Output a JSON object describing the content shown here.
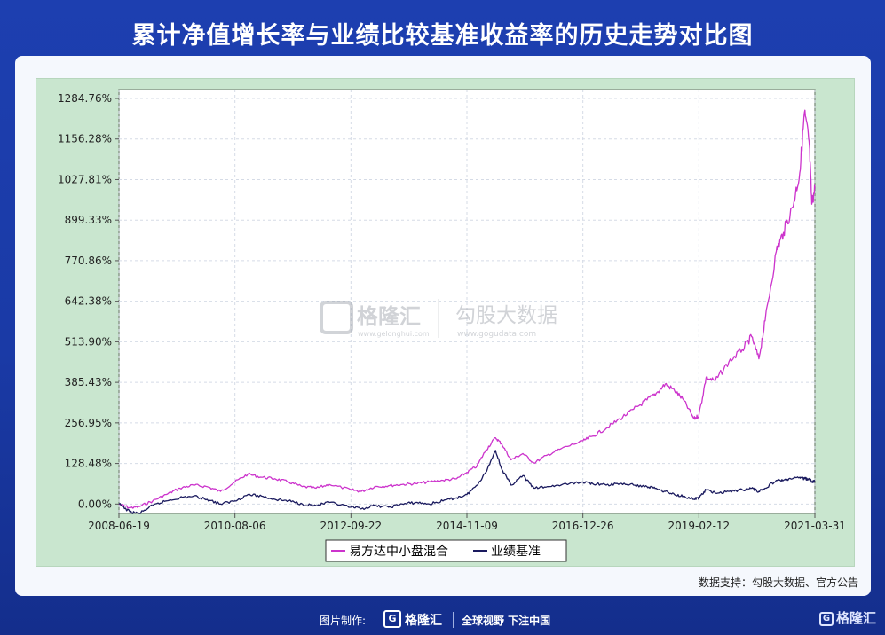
{
  "title": "累计净值增长率与业绩比较基准收益率的历史走势对比图",
  "source_note": "数据支持：勾股大数据、官方公告",
  "footer": {
    "made_by": "图片制作:",
    "brand": "格隆汇",
    "slogan": "全球视野 下注中国",
    "corner_brand": "格隆汇"
  },
  "watermark": {
    "left_name": "格隆汇",
    "left_url": "www.gelonghui.com",
    "right_name": "勾股大数据",
    "right_url": "www.gogudata.com"
  },
  "colors": {
    "fund": "#cc33cc",
    "benchmark": "#1a1a5e",
    "plot_bg": "#ffffff",
    "frame_bg": "#c9e6cf"
  },
  "chart_data": {
    "type": "line",
    "title": "",
    "xlabel": "",
    "ylabel": "",
    "x_tick_labels": [
      "2008-06-19",
      "2010-08-06",
      "2012-09-22",
      "2014-11-09",
      "2016-12-26",
      "2019-02-12",
      "2021-03-31"
    ],
    "y_tick_labels": [
      "0.00%",
      "128.48%",
      "256.95%",
      "385.43%",
      "513.90%",
      "642.38%",
      "770.86%",
      "899.33%",
      "1027.81%",
      "1156.28%",
      "1284.76%"
    ],
    "y_ticks": [
      0,
      128.48,
      256.95,
      385.43,
      513.9,
      642.38,
      770.86,
      899.33,
      1027.81,
      1156.28,
      1284.76
    ],
    "ylim": [
      -30,
      1284.76
    ],
    "xlim": [
      "2008-06-19",
      "2021-03-31"
    ],
    "grid": true,
    "legend_position": "bottom",
    "series": [
      {
        "name": "易方达中小盘混合",
        "points": [
          [
            "2008-06-19",
            0
          ],
          [
            "2008-09-01",
            -12
          ],
          [
            "2008-11-01",
            -8
          ],
          [
            "2009-02-01",
            10
          ],
          [
            "2009-05-01",
            30
          ],
          [
            "2009-08-01",
            50
          ],
          [
            "2009-11-01",
            60
          ],
          [
            "2010-02-01",
            55
          ],
          [
            "2010-05-01",
            40
          ],
          [
            "2010-08-06",
            70
          ],
          [
            "2010-11-01",
            95
          ],
          [
            "2011-02-01",
            85
          ],
          [
            "2011-05-01",
            80
          ],
          [
            "2011-08-01",
            70
          ],
          [
            "2011-11-01",
            55
          ],
          [
            "2012-02-01",
            50
          ],
          [
            "2012-05-01",
            62
          ],
          [
            "2012-09-22",
            45
          ],
          [
            "2012-12-01",
            40
          ],
          [
            "2013-03-01",
            55
          ],
          [
            "2013-06-01",
            58
          ],
          [
            "2013-09-01",
            62
          ],
          [
            "2013-12-01",
            65
          ],
          [
            "2014-03-01",
            70
          ],
          [
            "2014-06-01",
            75
          ],
          [
            "2014-09-01",
            80
          ],
          [
            "2014-11-09",
            100
          ],
          [
            "2015-01-15",
            120
          ],
          [
            "2015-03-15",
            170
          ],
          [
            "2015-05-20",
            210
          ],
          [
            "2015-07-01",
            190
          ],
          [
            "2015-09-01",
            140
          ],
          [
            "2015-11-20",
            160
          ],
          [
            "2016-02-01",
            130
          ],
          [
            "2016-05-01",
            155
          ],
          [
            "2016-08-01",
            175
          ],
          [
            "2016-12-26",
            200
          ],
          [
            "2017-03-01",
            215
          ],
          [
            "2017-06-01",
            240
          ],
          [
            "2017-09-01",
            270
          ],
          [
            "2017-12-01",
            300
          ],
          [
            "2018-03-01",
            330
          ],
          [
            "2018-05-01",
            350
          ],
          [
            "2018-07-01",
            380
          ],
          [
            "2018-09-01",
            360
          ],
          [
            "2018-11-01",
            330
          ],
          [
            "2019-01-10",
            270
          ],
          [
            "2019-02-12",
            280
          ],
          [
            "2019-04-01",
            400
          ],
          [
            "2019-06-01",
            390
          ],
          [
            "2019-09-01",
            450
          ],
          [
            "2019-12-01",
            490
          ],
          [
            "2020-02-01",
            530
          ],
          [
            "2020-03-20",
            460
          ],
          [
            "2020-05-01",
            580
          ],
          [
            "2020-07-15",
            800
          ],
          [
            "2020-09-01",
            860
          ],
          [
            "2020-11-01",
            940
          ],
          [
            "2020-12-20",
            1050
          ],
          [
            "2021-01-20",
            1240
          ],
          [
            "2021-02-20",
            1150
          ],
          [
            "2021-03-10",
            950
          ],
          [
            "2021-03-31",
            1000
          ]
        ]
      },
      {
        "name": "业绩基准",
        "points": [
          [
            "2008-06-19",
            0
          ],
          [
            "2008-09-01",
            -25
          ],
          [
            "2008-11-01",
            -30
          ],
          [
            "2009-02-01",
            -5
          ],
          [
            "2009-05-01",
            10
          ],
          [
            "2009-08-01",
            20
          ],
          [
            "2009-11-01",
            25
          ],
          [
            "2010-02-01",
            15
          ],
          [
            "2010-05-01",
            0
          ],
          [
            "2010-08-06",
            10
          ],
          [
            "2010-11-01",
            30
          ],
          [
            "2011-02-01",
            25
          ],
          [
            "2011-05-01",
            15
          ],
          [
            "2011-08-01",
            10
          ],
          [
            "2011-11-01",
            0
          ],
          [
            "2012-02-01",
            -5
          ],
          [
            "2012-05-01",
            5
          ],
          [
            "2012-09-22",
            -10
          ],
          [
            "2012-12-01",
            -15
          ],
          [
            "2013-03-01",
            -5
          ],
          [
            "2013-06-01",
            -10
          ],
          [
            "2013-09-01",
            0
          ],
          [
            "2013-12-01",
            5
          ],
          [
            "2014-03-01",
            0
          ],
          [
            "2014-06-01",
            10
          ],
          [
            "2014-09-01",
            20
          ],
          [
            "2014-11-09",
            30
          ],
          [
            "2015-01-15",
            60
          ],
          [
            "2015-03-15",
            100
          ],
          [
            "2015-05-20",
            170
          ],
          [
            "2015-07-01",
            110
          ],
          [
            "2015-09-01",
            60
          ],
          [
            "2015-11-20",
            90
          ],
          [
            "2016-02-01",
            50
          ],
          [
            "2016-05-01",
            55
          ],
          [
            "2016-08-01",
            60
          ],
          [
            "2016-12-26",
            70
          ],
          [
            "2017-03-01",
            65
          ],
          [
            "2017-06-01",
            60
          ],
          [
            "2017-09-01",
            65
          ],
          [
            "2017-12-01",
            60
          ],
          [
            "2018-03-01",
            55
          ],
          [
            "2018-05-01",
            50
          ],
          [
            "2018-07-01",
            40
          ],
          [
            "2018-09-01",
            30
          ],
          [
            "2018-11-01",
            25
          ],
          [
            "2019-01-10",
            15
          ],
          [
            "2019-02-12",
            20
          ],
          [
            "2019-04-01",
            45
          ],
          [
            "2019-06-01",
            35
          ],
          [
            "2019-09-01",
            40
          ],
          [
            "2019-12-01",
            45
          ],
          [
            "2020-02-01",
            50
          ],
          [
            "2020-03-20",
            40
          ],
          [
            "2020-05-01",
            50
          ],
          [
            "2020-07-15",
            75
          ],
          [
            "2020-09-01",
            75
          ],
          [
            "2020-11-01",
            80
          ],
          [
            "2020-12-20",
            85
          ],
          [
            "2021-01-20",
            80
          ],
          [
            "2021-02-20",
            80
          ],
          [
            "2021-03-10",
            70
          ],
          [
            "2021-03-31",
            72
          ]
        ]
      }
    ]
  }
}
